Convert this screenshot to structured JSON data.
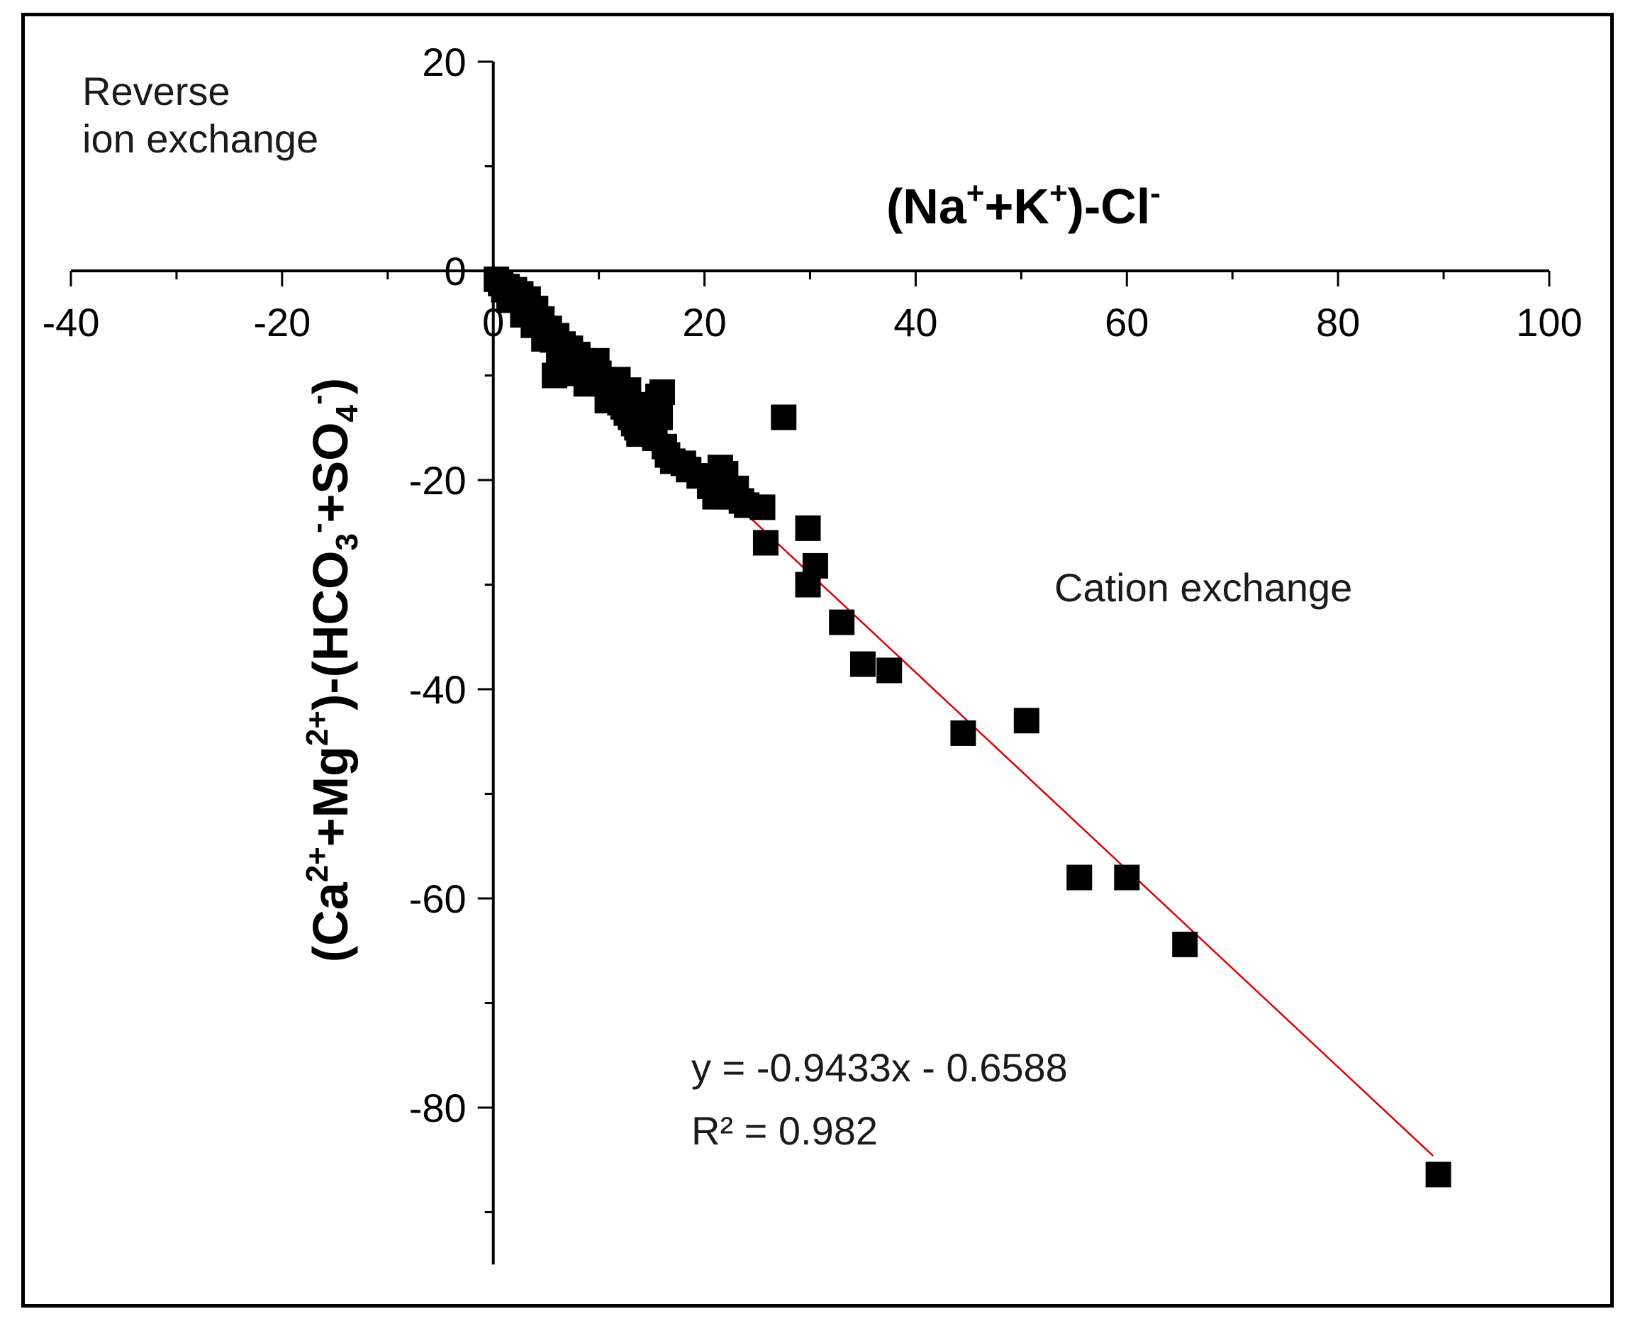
{
  "chart_data": {
    "type": "scatter",
    "xlabel": {
      "parts": [
        "(Na",
        "+",
        "+K",
        "+",
        ")-Cl",
        "-"
      ]
    },
    "ylabel": {
      "parts": [
        "(Ca",
        "2+",
        "+Mg",
        "2+",
        ")-(HCO",
        "3",
        "-",
        "+SO",
        "4",
        "-",
        ")"
      ]
    },
    "xlim": [
      -40,
      100
    ],
    "ylim": [
      -95,
      20
    ],
    "x_ticks": [
      -40,
      -20,
      0,
      20,
      40,
      60,
      80,
      100
    ],
    "y_ticks": [
      20,
      0,
      -20,
      -40,
      -60,
      -80
    ],
    "annotations": {
      "reverse_line1": "Reverse",
      "reverse_line2": "ion exchange",
      "cation": "Cation exchange",
      "equation": "y = -0.9433x - 0.6588",
      "r2": "R² = 0.982"
    },
    "trendline": {
      "slope": -0.9433,
      "intercept": -0.6588,
      "x_range": [
        0.5,
        89
      ],
      "color": "#e00000"
    },
    "marker_color": "#000000",
    "points": [
      [
        0.3,
        -0.8
      ],
      [
        0.7,
        -1.2
      ],
      [
        1.0,
        -1.8
      ],
      [
        1.3,
        -1.5
      ],
      [
        1.6,
        -2.2
      ],
      [
        2.0,
        -1.8
      ],
      [
        2.3,
        -2.6
      ],
      [
        2.6,
        -2.2
      ],
      [
        3.0,
        -3.2
      ],
      [
        3.3,
        -2.7
      ],
      [
        3.6,
        -4.0
      ],
      [
        4.0,
        -3.6
      ],
      [
        4.3,
        -5.0
      ],
      [
        4.6,
        -4.6
      ],
      [
        5.0,
        -5.8
      ],
      [
        5.3,
        -5.5
      ],
      [
        5.6,
        -6.6
      ],
      [
        6.0,
        -6.2
      ],
      [
        6.3,
        -7.2
      ],
      [
        6.6,
        -7.0
      ],
      [
        7.0,
        -7.8
      ],
      [
        7.3,
        -7.4
      ],
      [
        7.6,
        -8.4
      ],
      [
        8.0,
        -8.0
      ],
      [
        8.3,
        -8.8
      ],
      [
        8.6,
        -8.6
      ],
      [
        9.0,
        -9.4
      ],
      [
        9.3,
        -9.0
      ],
      [
        9.6,
        -10.2
      ],
      [
        10.0,
        -9.8
      ],
      [
        10.3,
        -10.8
      ],
      [
        10.6,
        -10.4
      ],
      [
        11.0,
        -11.2
      ],
      [
        11.3,
        -11.6
      ],
      [
        11.6,
        -12.2
      ],
      [
        12.0,
        -12.6
      ],
      [
        12.3,
        -13.0
      ],
      [
        12.6,
        -13.6
      ],
      [
        13.0,
        -14.0
      ],
      [
        13.3,
        -14.6
      ],
      [
        13.6,
        -15.0
      ],
      [
        14.0,
        -14.4
      ],
      [
        14.3,
        -13.6
      ],
      [
        14.6,
        -12.8
      ],
      [
        15.0,
        -15.6
      ],
      [
        15.3,
        -16.0
      ],
      [
        15.6,
        -12.0
      ],
      [
        16.0,
        -11.6
      ],
      [
        16.5,
        -17.6
      ],
      [
        17.0,
        -18.2
      ],
      [
        18.0,
        -18.4
      ],
      [
        19.5,
        -19.6
      ],
      [
        20.5,
        -20.6
      ],
      [
        21.5,
        -18.8
      ],
      [
        22.0,
        -19.4
      ],
      [
        22.5,
        -21.6
      ],
      [
        23.0,
        -20.8
      ],
      [
        24.0,
        -22.4
      ],
      [
        25.5,
        -22.6
      ],
      [
        25.8,
        -26.0
      ],
      [
        27.5,
        -14.0
      ],
      [
        29.8,
        -24.6
      ],
      [
        29.8,
        -30.0
      ],
      [
        30.5,
        -28.2
      ],
      [
        33.0,
        -33.6
      ],
      [
        35.0,
        -37.6
      ],
      [
        37.5,
        -38.2
      ],
      [
        44.5,
        -44.2
      ],
      [
        50.5,
        -43.0
      ],
      [
        55.5,
        -58.0
      ],
      [
        60.0,
        -58.0
      ],
      [
        65.5,
        -64.4
      ],
      [
        89.5,
        -86.4
      ],
      [
        1.5,
        -2.8
      ],
      [
        2.8,
        -4.2
      ],
      [
        4.8,
        -6.5
      ],
      [
        5.8,
        -10.0
      ],
      [
        6.2,
        -8.4
      ],
      [
        7.8,
        -9.2
      ],
      [
        8.8,
        -10.8
      ],
      [
        10.8,
        -12.4
      ],
      [
        11.8,
        -10.4
      ],
      [
        12.8,
        -11.4
      ],
      [
        13.8,
        -15.6
      ],
      [
        15.8,
        -14.0
      ],
      [
        16.2,
        -16.8
      ],
      [
        18.5,
        -19.0
      ],
      [
        21.0,
        -21.6
      ],
      [
        23.5,
        -22.0
      ],
      [
        9.8,
        -8.6
      ],
      [
        3.8,
        -5.2
      ],
      [
        6.8,
        -9.8
      ]
    ]
  }
}
